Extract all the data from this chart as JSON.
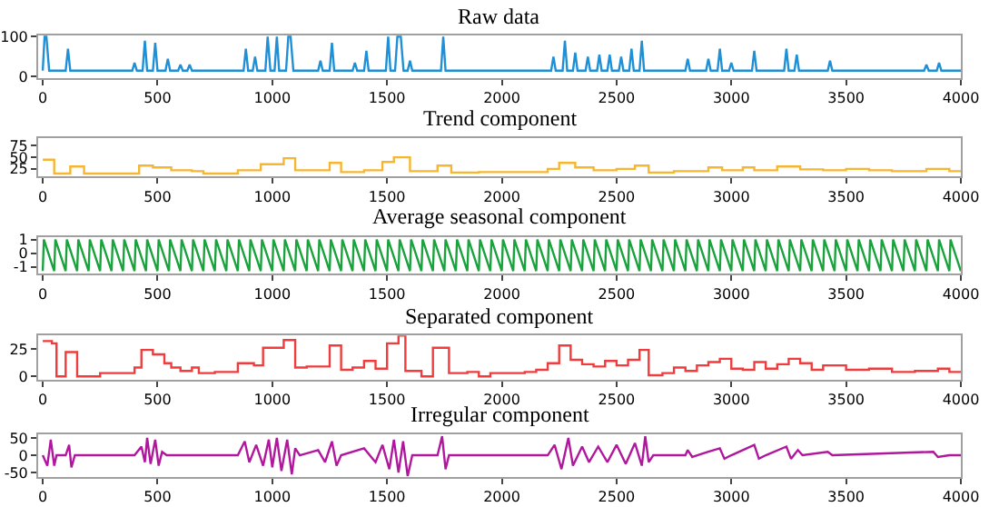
{
  "chart_data": [
    {
      "type": "line",
      "title": "Raw data",
      "color": "#1f8fd6",
      "xlim": [
        -20,
        4000
      ],
      "ylim": [
        -3,
        103
      ],
      "xticks": [
        0,
        500,
        1000,
        1500,
        2000,
        2500,
        3000,
        3500,
        4000
      ],
      "yticks": [
        0,
        100
      ],
      "x": [
        0,
        8,
        16,
        28,
        100,
        110,
        120,
        390,
        400,
        410,
        435,
        445,
        455,
        480,
        490,
        500,
        535,
        545,
        555,
        590,
        600,
        610,
        630,
        640,
        650,
        875,
        885,
        895,
        915,
        925,
        935,
        970,
        980,
        992,
        1010,
        1020,
        1030,
        1060,
        1070,
        1080,
        1092,
        1200,
        1210,
        1220,
        1250,
        1260,
        1270,
        1350,
        1360,
        1370,
        1400,
        1410,
        1420,
        1495,
        1505,
        1515,
        1535,
        1545,
        1560,
        1572,
        1590,
        1600,
        1610,
        1735,
        1745,
        1755,
        2215,
        2225,
        2235,
        2265,
        2275,
        2285,
        2310,
        2320,
        2330,
        2365,
        2375,
        2385,
        2415,
        2425,
        2435,
        2460,
        2470,
        2480,
        2510,
        2520,
        2530,
        2555,
        2565,
        2575,
        2600,
        2610,
        2620,
        2800,
        2810,
        2820,
        2890,
        2900,
        2910,
        2940,
        2950,
        2960,
        2990,
        3000,
        3010,
        3090,
        3100,
        3110,
        3230,
        3240,
        3250,
        3275,
        3285,
        3295,
        3420,
        3430,
        3440,
        3840,
        3850,
        3860,
        3895,
        3905,
        3915,
        4000
      ],
      "values": [
        15,
        100,
        100,
        15,
        15,
        70,
        15,
        15,
        35,
        15,
        15,
        90,
        15,
        15,
        85,
        15,
        15,
        45,
        15,
        15,
        30,
        15,
        15,
        30,
        15,
        15,
        70,
        15,
        15,
        50,
        15,
        15,
        100,
        15,
        15,
        100,
        15,
        15,
        100,
        100,
        15,
        15,
        40,
        15,
        15,
        85,
        15,
        15,
        35,
        15,
        15,
        65,
        15,
        15,
        100,
        15,
        15,
        100,
        100,
        15,
        15,
        40,
        15,
        15,
        100,
        15,
        15,
        50,
        15,
        15,
        90,
        15,
        15,
        60,
        15,
        15,
        50,
        15,
        15,
        55,
        15,
        15,
        55,
        15,
        15,
        50,
        15,
        15,
        70,
        15,
        15,
        90,
        15,
        15,
        45,
        15,
        15,
        45,
        15,
        15,
        70,
        15,
        15,
        35,
        15,
        15,
        65,
        15,
        15,
        70,
        15,
        15,
        55,
        15,
        15,
        40,
        15,
        15,
        30,
        15,
        15,
        35,
        15,
        15
      ]
    },
    {
      "type": "step",
      "title": "Trend component",
      "color": "#f5b731",
      "xlim": [
        -20,
        4000
      ],
      "ylim": [
        8,
        92
      ],
      "xticks": [
        0,
        500,
        1000,
        1500,
        2000,
        2500,
        3000,
        3500,
        4000
      ],
      "yticks": [
        25,
        50,
        75
      ],
      "x": [
        0,
        50,
        120,
        180,
        420,
        480,
        560,
        650,
        700,
        850,
        950,
        1050,
        1100,
        1250,
        1300,
        1400,
        1480,
        1530,
        1600,
        1720,
        1780,
        1900,
        2200,
        2250,
        2320,
        2400,
        2500,
        2580,
        2640,
        2750,
        2900,
        2960,
        3050,
        3100,
        3200,
        3300,
        3400,
        3500,
        3600,
        3700,
        3850,
        3950,
        4000
      ],
      "values": [
        45,
        15,
        30,
        15,
        32,
        28,
        22,
        20,
        15,
        22,
        35,
        48,
        22,
        38,
        18,
        22,
        40,
        50,
        20,
        32,
        17,
        18,
        25,
        38,
        28,
        22,
        25,
        32,
        17,
        20,
        28,
        22,
        28,
        22,
        30,
        24,
        22,
        25,
        22,
        20,
        25,
        20,
        20
      ]
    },
    {
      "type": "line",
      "title": "Average seasonal component",
      "color": "#1aa33c",
      "xlim": [
        -20,
        4000
      ],
      "ylim": [
        -1.5,
        1.2
      ],
      "xticks": [
        0,
        500,
        1000,
        1500,
        2000,
        2500,
        3000,
        3500,
        4000
      ],
      "yticks": [
        -1,
        0,
        1
      ],
      "x": [
        0,
        5,
        50,
        55,
        100,
        105,
        150,
        155,
        200,
        205,
        250,
        255,
        300,
        305,
        350,
        355,
        400,
        405,
        450,
        455,
        500,
        505,
        550,
        555,
        600,
        605,
        650,
        655,
        700,
        705,
        750,
        755,
        800,
        805,
        850,
        855,
        900,
        905,
        950,
        955,
        1000,
        1005,
        1050,
        1055,
        1100,
        1105,
        1150,
        1155,
        1200,
        1205,
        1250,
        1255,
        1300,
        1305,
        1350,
        1355,
        1400,
        1405,
        1450,
        1455,
        1500,
        1505,
        1550,
        1555,
        1600,
        1605,
        1650,
        1655,
        1700,
        1705,
        1750,
        1755,
        1800,
        1805,
        1850,
        1855,
        1900,
        1905,
        1950,
        1955,
        2000,
        2005,
        2050,
        2055,
        2100,
        2105,
        2150,
        2155,
        2200,
        2205,
        2250,
        2255,
        2300,
        2305,
        2350,
        2355,
        2400,
        2405,
        2450,
        2455,
        2500,
        2505,
        2550,
        2555,
        2600,
        2605,
        2650,
        2655,
        2700,
        2705,
        2750,
        2755,
        2800,
        2805,
        2850,
        2855,
        2900,
        2905,
        2950,
        2955,
        3000,
        3005,
        3050,
        3055,
        3100,
        3105,
        3150,
        3155,
        3200,
        3205,
        3250,
        3255,
        3300,
        3305,
        3350,
        3355,
        3400,
        3405,
        3450,
        3455,
        3500,
        3505,
        3550,
        3555,
        3600,
        3605,
        3650,
        3655,
        3700,
        3705,
        3750,
        3755,
        3800,
        3805,
        3850,
        3855,
        3900,
        3905,
        3950,
        3955,
        4000
      ],
      "values": [
        -1.3,
        1,
        -1.3,
        1,
        -1.3,
        1,
        -1.3,
        1,
        -1.3,
        1,
        -1.3,
        1,
        -1.3,
        1,
        -1.3,
        1,
        -1.3,
        1,
        -1.3,
        1,
        -1.3,
        1,
        -1.3,
        1,
        -1.3,
        1,
        -1.3,
        1,
        -1.3,
        1,
        -1.3,
        1,
        -1.3,
        1,
        -1.3,
        1,
        -1.3,
        1,
        -1.3,
        1,
        -1.3,
        1,
        -1.3,
        1,
        -1.3,
        1,
        -1.3,
        1,
        -1.3,
        1,
        -1.3,
        1,
        -1.3,
        1,
        -1.3,
        1,
        -1.3,
        1,
        -1.3,
        1,
        -1.3,
        1,
        -1.3,
        1,
        -1.3,
        1,
        -1.3,
        1,
        -1.3,
        1,
        -1.3,
        1,
        -1.3,
        1,
        -1.3,
        1,
        -1.3,
        1,
        -1.3,
        1,
        -1.3,
        1,
        -1.3,
        1,
        -1.3,
        1,
        -1.3,
        1,
        -1.3,
        1,
        -1.3,
        1,
        -1.3,
        1,
        -1.3,
        1,
        -1.3,
        1,
        -1.3,
        1,
        -1.3,
        1,
        -1.3,
        1,
        -1.3,
        1,
        -1.3,
        1,
        -1.3,
        1,
        -1.3,
        1,
        -1.3,
        1,
        -1.3,
        1,
        -1.3,
        1,
        -1.3,
        1,
        -1.3,
        1,
        -1.3,
        1,
        -1.3,
        1,
        -1.3,
        1,
        -1.3,
        1,
        -1.3,
        1,
        -1.3,
        1,
        -1.3,
        1,
        -1.3,
        1,
        -1.3,
        1,
        -1.3,
        1,
        -1.3,
        1,
        -1.3,
        1,
        -1.3,
        1,
        -1.3,
        1,
        -1.3,
        1,
        -1.3,
        1,
        -1.3,
        1,
        -1.3,
        1,
        -1.3,
        1,
        -1.3
      ]
    },
    {
      "type": "step",
      "title": "Separated component",
      "color": "#f03c3c",
      "xlim": [
        -20,
        4000
      ],
      "ylim": [
        -3,
        37
      ],
      "xticks": [
        0,
        500,
        1000,
        1500,
        2000,
        2500,
        3000,
        3500,
        4000
      ],
      "yticks": [
        0,
        25
      ],
      "x": [
        0,
        40,
        60,
        100,
        150,
        250,
        400,
        430,
        480,
        530,
        560,
        600,
        650,
        680,
        750,
        850,
        920,
        960,
        1050,
        1100,
        1150,
        1250,
        1300,
        1350,
        1400,
        1450,
        1500,
        1550,
        1580,
        1650,
        1700,
        1770,
        1850,
        1900,
        1950,
        2100,
        2150,
        2200,
        2250,
        2300,
        2350,
        2400,
        2450,
        2500,
        2550,
        2600,
        2640,
        2700,
        2750,
        2800,
        2850,
        2900,
        2950,
        3000,
        3050,
        3100,
        3150,
        3200,
        3250,
        3300,
        3350,
        3400,
        3500,
        3600,
        3700,
        3800,
        3900,
        3950,
        4000
      ],
      "values": [
        32,
        30,
        0,
        22,
        0,
        3,
        8,
        24,
        20,
        12,
        8,
        5,
        8,
        3,
        4,
        12,
        10,
        26,
        33,
        8,
        9,
        28,
        6,
        8,
        14,
        7,
        30,
        37,
        5,
        0,
        26,
        3,
        4,
        0,
        3,
        4,
        6,
        12,
        28,
        15,
        11,
        9,
        14,
        10,
        15,
        24,
        1,
        3,
        8,
        5,
        10,
        13,
        16,
        7,
        6,
        13,
        7,
        11,
        16,
        12,
        6,
        10,
        6,
        7,
        4,
        5,
        7,
        4,
        4
      ]
    },
    {
      "type": "line",
      "title": "Irregular component",
      "color": "#b0179d",
      "xlim": [
        -20,
        4000
      ],
      "ylim": [
        -62,
        60
      ],
      "xticks": [
        0,
        500,
        1000,
        1500,
        2000,
        2500,
        3000,
        3500,
        4000
      ],
      "yticks": [
        -50,
        0,
        50
      ],
      "x": [
        0,
        20,
        35,
        50,
        60,
        100,
        115,
        125,
        140,
        400,
        430,
        445,
        455,
        470,
        490,
        505,
        520,
        540,
        850,
        880,
        900,
        930,
        960,
        985,
        1000,
        1020,
        1040,
        1065,
        1085,
        1100,
        1120,
        1200,
        1230,
        1260,
        1280,
        1300,
        1400,
        1450,
        1480,
        1510,
        1530,
        1550,
        1570,
        1590,
        1610,
        1720,
        1740,
        1755,
        1770,
        2200,
        2230,
        2260,
        2290,
        2310,
        2350,
        2380,
        2420,
        2460,
        2500,
        2540,
        2580,
        2610,
        2625,
        2640,
        2660,
        2800,
        2810,
        2830,
        2900,
        2950,
        2970,
        3000,
        3100,
        3120,
        3150,
        3240,
        3260,
        3290,
        3310,
        3420,
        3440,
        3880,
        3900,
        3950,
        4000
      ],
      "values": [
        0,
        -30,
        45,
        -30,
        0,
        0,
        30,
        -35,
        0,
        0,
        25,
        -20,
        50,
        -25,
        45,
        -30,
        10,
        0,
        0,
        40,
        -20,
        30,
        -30,
        45,
        -35,
        50,
        -45,
        45,
        -55,
        20,
        0,
        15,
        -20,
        40,
        -30,
        0,
        20,
        -20,
        30,
        -40,
        45,
        -50,
        40,
        -60,
        0,
        0,
        55,
        -40,
        0,
        0,
        30,
        -40,
        50,
        -30,
        25,
        -20,
        25,
        -20,
        30,
        -25,
        35,
        -30,
        55,
        -20,
        0,
        0,
        15,
        -5,
        10,
        20,
        -10,
        0,
        30,
        -10,
        0,
        25,
        -10,
        15,
        0,
        10,
        0,
        10,
        -5,
        0,
        0
      ]
    }
  ]
}
